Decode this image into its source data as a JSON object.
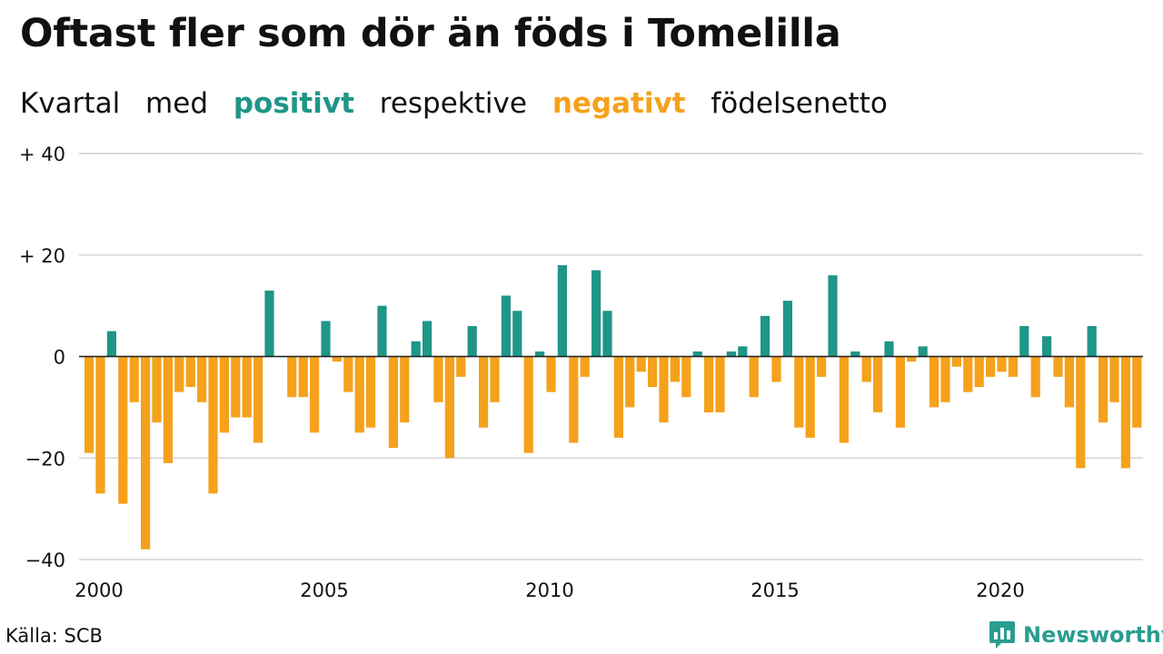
{
  "header": {
    "title": "Oftast fler som dör än föds i Tomelilla",
    "subtitle": {
      "w1": "Kvartal",
      "w2": "med",
      "w3": "positivt",
      "w4": "respektive",
      "w5": "negativt",
      "w6": "födelsenetto"
    }
  },
  "footer": {
    "source": "Källa: SCB",
    "brand": "Newsworthy",
    "brand_icon": "bar-chart-speech-bubble-icon"
  },
  "colors": {
    "positive": "#1f9688",
    "negative": "#f5a11c",
    "grid": "#dddddd",
    "brand": "#2a9d8f"
  },
  "chart_data": {
    "type": "bar",
    "x_start": "2000 Q1",
    "frequency": "quarterly",
    "ylim": [
      -40,
      40
    ],
    "y_ticks": [
      40,
      20,
      0,
      -20,
      -40
    ],
    "y_tick_labels": [
      "+ 40",
      "+ 20",
      "0",
      "−20",
      "−40"
    ],
    "x_ticks": [
      "2000",
      "2005",
      "2010",
      "2015",
      "2020"
    ],
    "grid": true,
    "values": [
      -19,
      -27,
      5,
      -29,
      -9,
      -38,
      -13,
      -21,
      -7,
      -6,
      -9,
      -27,
      -15,
      -12,
      -12,
      -17,
      13,
      0,
      -8,
      -8,
      -15,
      7,
      -1,
      -7,
      -15,
      -14,
      10,
      -18,
      -13,
      3,
      7,
      -9,
      -20,
      -4,
      6,
      -14,
      -9,
      12,
      9,
      -19,
      1,
      -7,
      18,
      -17,
      -4,
      17,
      9,
      -16,
      -10,
      -3,
      -6,
      -13,
      -5,
      -8,
      1,
      -11,
      -11,
      1,
      2,
      -8,
      8,
      -5,
      11,
      -14,
      -16,
      -4,
      16,
      -17,
      1,
      -5,
      -11,
      3,
      -14,
      -1,
      2,
      -10,
      -9,
      -2,
      -7,
      -6,
      -4,
      -3,
      -4,
      6,
      -8,
      4,
      -4,
      -10,
      -22,
      6,
      -13,
      -9,
      -22,
      -14
    ]
  }
}
